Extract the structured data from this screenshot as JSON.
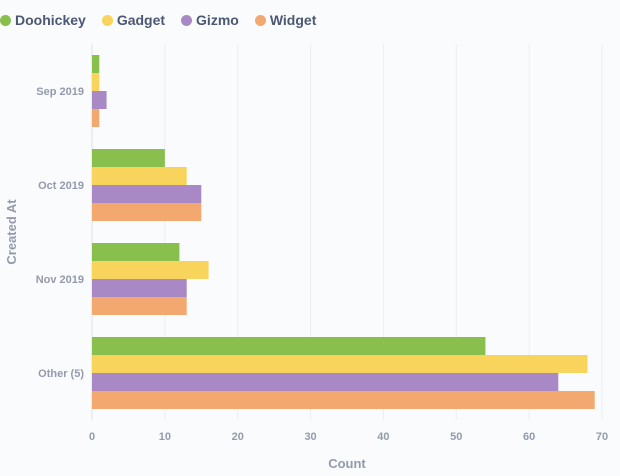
{
  "chart_data": {
    "type": "bar",
    "orientation": "horizontal",
    "categories": [
      "Sep 2019",
      "Oct 2019",
      "Nov 2019",
      "Other (5)"
    ],
    "series": [
      {
        "name": "Doohickey",
        "color": "#88bf4d",
        "values": [
          1,
          10,
          12,
          54
        ]
      },
      {
        "name": "Gadget",
        "color": "#f9d45c",
        "values": [
          1,
          13,
          16,
          68
        ]
      },
      {
        "name": "Gizmo",
        "color": "#a989c5",
        "values": [
          2,
          15,
          13,
          64
        ]
      },
      {
        "name": "Widget",
        "color": "#f2a86f",
        "values": [
          1,
          15,
          13,
          69
        ]
      }
    ],
    "xlabel": "Count",
    "ylabel": "Created At",
    "xlim": [
      0,
      70
    ],
    "xticks": [
      0,
      10,
      20,
      30,
      40,
      50,
      60,
      70
    ],
    "grid": true,
    "legend_position": "top-left"
  }
}
